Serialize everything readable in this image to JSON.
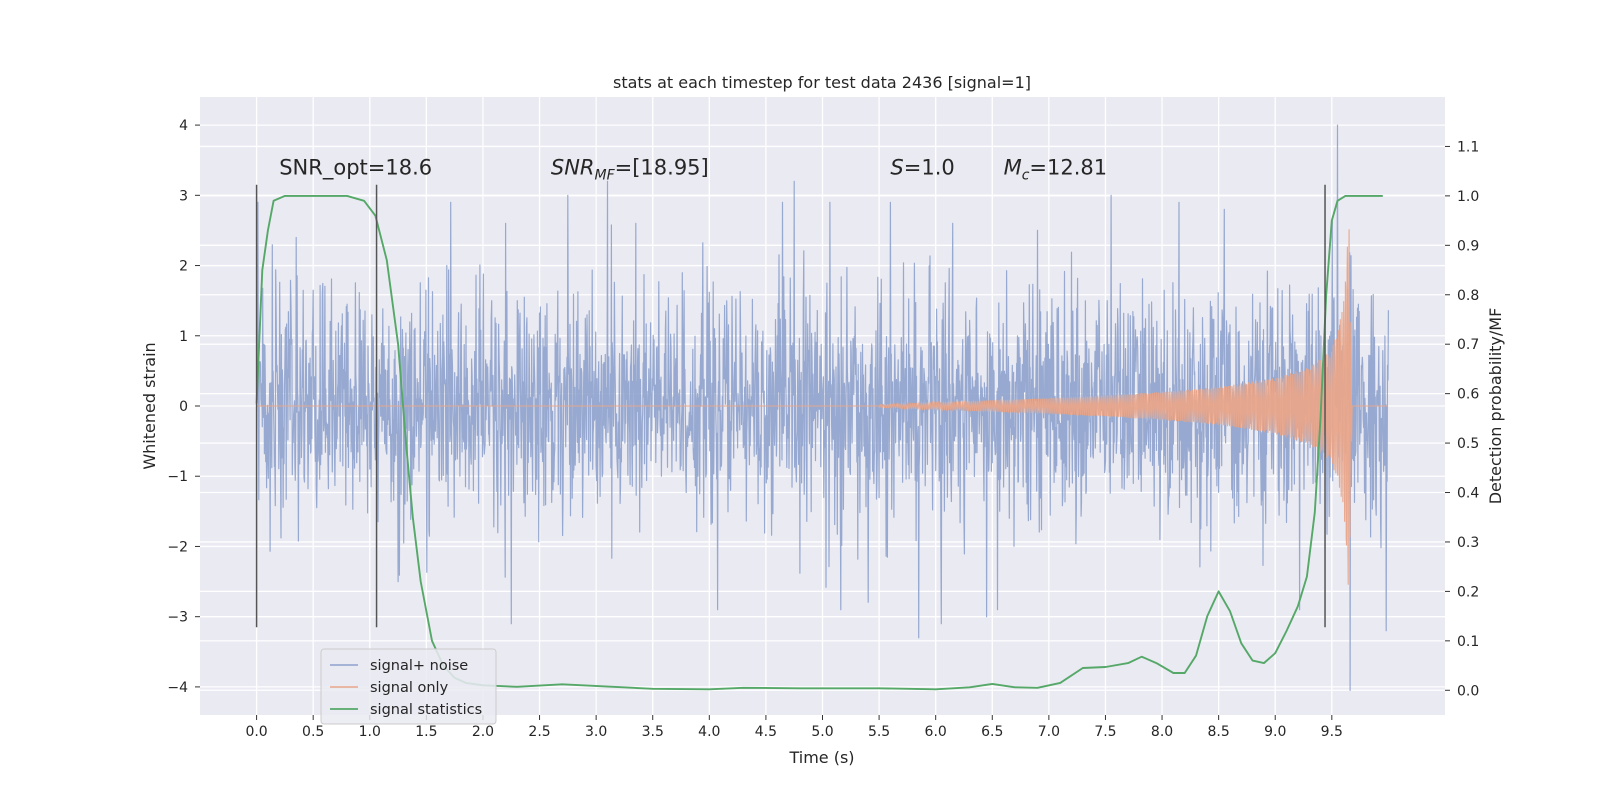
{
  "chart_data": {
    "type": "line",
    "title": "stats at each timestep for test data 2436 [signal=1]",
    "xlabel": "Time (s)",
    "ylabel": "Whitened strain",
    "y2label": "Detection probability/MF",
    "xlim": [
      -0.5,
      10.5
    ],
    "ylim": [
      -4.4,
      4.4
    ],
    "y2lim": [
      -0.05,
      1.2
    ],
    "x_ticks": [
      0.0,
      0.5,
      1.0,
      1.5,
      2.0,
      2.5,
      3.0,
      3.5,
      4.0,
      4.5,
      5.0,
      5.5,
      6.0,
      6.5,
      7.0,
      7.5,
      8.0,
      8.5,
      9.0,
      9.5
    ],
    "x_tick_labels": [
      "0.0",
      "0.5",
      "1.0",
      "1.5",
      "2.0",
      "2.5",
      "3.0",
      "3.5",
      "4.0",
      "4.5",
      "5.0",
      "5.5",
      "6.0",
      "6.5",
      "7.0",
      "7.5",
      "8.0",
      "8.5",
      "9.0",
      "9.5"
    ],
    "y_ticks": [
      -4,
      -3,
      -2,
      -1,
      0,
      1,
      2,
      3,
      4
    ],
    "y_tick_labels": [
      "−4",
      "−3",
      "−2",
      "−1",
      "0",
      "1",
      "2",
      "3",
      "4"
    ],
    "y2_ticks": [
      0.0,
      0.1,
      0.2,
      0.3,
      0.4,
      0.5,
      0.6,
      0.7,
      0.8,
      0.9,
      1.0,
      1.1
    ],
    "y2_tick_labels": [
      "0.0",
      "0.1",
      "0.2",
      "0.3",
      "0.4",
      "0.5",
      "0.6",
      "0.7",
      "0.8",
      "0.9",
      "1.0",
      "1.1"
    ],
    "grid": true,
    "legend": {
      "placement": "lower-left",
      "entries": [
        {
          "label": "signal+ noise",
          "color": "#8ea2cc"
        },
        {
          "label": "signal only",
          "color": "#e8a58a"
        },
        {
          "label": "signal statistics",
          "color": "#55a868"
        }
      ]
    },
    "annotations": [
      {
        "text": "SNR_opt=18.6",
        "x": 0.2,
        "y": 3.3
      },
      {
        "text": "SNR_MF=[18.95]",
        "x": 2.6,
        "y": 3.3
      },
      {
        "text": "S=1.0",
        "x": 5.6,
        "y": 3.3
      },
      {
        "text": "M_c=12.81",
        "x": 6.6,
        "y": 3.3
      }
    ],
    "vertical_markers": [
      {
        "x": 0.0,
        "y_range": [
          -3.15,
          3.15
        ]
      },
      {
        "x": 1.06,
        "y_range": [
          -3.15,
          3.15
        ]
      },
      {
        "x": 9.44,
        "y_range": [
          -3.15,
          3.15
        ]
      }
    ],
    "series": [
      {
        "name": "signal+ noise",
        "axis": "left",
        "color": "#8ea2cc",
        "description": "whitened noisy strain, t = 0 to 10 s",
        "x_range": [
          0.0,
          10.0
        ],
        "envelope_typical": 1.3,
        "peak_times": [
          0.35,
          1.25,
          2.2,
          2.25,
          2.75,
          3.1,
          3.35,
          4.75,
          5.85,
          6.05,
          6.15,
          6.45,
          6.9,
          7.55,
          8.15,
          8.55,
          9.55,
          9.98
        ],
        "peak_values": [
          2.4,
          -2.5,
          2.6,
          -3.1,
          3.0,
          3.2,
          2.6,
          3.2,
          -3.3,
          -3.1,
          2.6,
          -3.0,
          2.5,
          3.0,
          2.9,
          2.8,
          4.0,
          -3.2
        ],
        "extremes": {
          "max": 4.0,
          "min": -4.05
        }
      },
      {
        "name": "signal only",
        "axis": "left",
        "color": "#e8a58a",
        "description": "injected chirp, growing amplitude until merger near 9.65 s",
        "x": [
          5.5,
          6.0,
          6.5,
          7.0,
          7.5,
          8.0,
          8.5,
          9.0,
          9.3,
          9.5,
          9.6,
          9.65,
          9.68
        ],
        "envelope": [
          0.02,
          0.05,
          0.08,
          0.11,
          0.15,
          0.2,
          0.27,
          0.4,
          0.55,
          0.8,
          1.4,
          2.8,
          0.05
        ]
      },
      {
        "name": "signal statistics",
        "axis": "right",
        "color": "#55a868",
        "x": [
          0.0,
          0.05,
          0.1,
          0.15,
          0.25,
          0.4,
          0.6,
          0.8,
          0.95,
          1.05,
          1.15,
          1.25,
          1.32,
          1.38,
          1.45,
          1.55,
          1.65,
          1.75,
          1.85,
          2.0,
          2.3,
          2.7,
          3.5,
          4.0,
          4.3,
          4.8,
          5.5,
          6.0,
          6.3,
          6.5,
          6.7,
          6.9,
          7.1,
          7.3,
          7.5,
          7.7,
          7.82,
          7.95,
          8.1,
          8.2,
          8.3,
          8.4,
          8.5,
          8.6,
          8.7,
          8.8,
          8.9,
          9.0,
          9.1,
          9.2,
          9.28,
          9.35,
          9.4,
          9.45,
          9.5,
          9.55,
          9.62,
          9.7,
          9.8,
          9.95
        ],
        "values": [
          0.58,
          0.85,
          0.93,
          0.99,
          1.0,
          1.0,
          1.0,
          1.0,
          0.99,
          0.96,
          0.87,
          0.7,
          0.5,
          0.35,
          0.22,
          0.1,
          0.05,
          0.025,
          0.015,
          0.01,
          0.007,
          0.012,
          0.003,
          0.002,
          0.005,
          0.004,
          0.004,
          0.002,
          0.006,
          0.013,
          0.006,
          0.005,
          0.015,
          0.045,
          0.047,
          0.055,
          0.068,
          0.055,
          0.035,
          0.035,
          0.07,
          0.15,
          0.2,
          0.16,
          0.095,
          0.06,
          0.055,
          0.075,
          0.12,
          0.17,
          0.23,
          0.36,
          0.55,
          0.8,
          0.95,
          0.99,
          1.0,
          1.0,
          1.0,
          1.0
        ]
      }
    ]
  }
}
